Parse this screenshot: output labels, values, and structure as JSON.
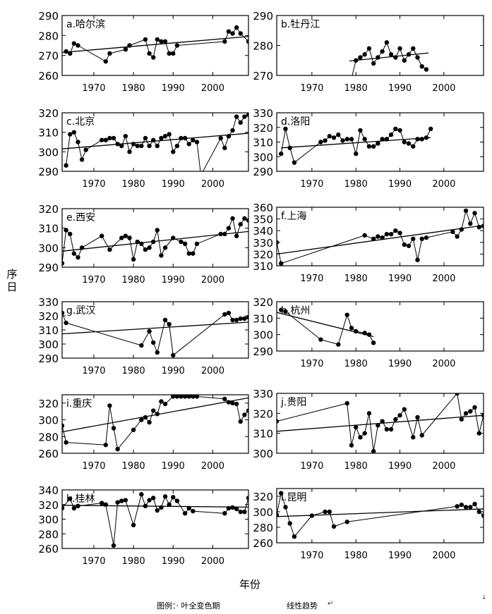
{
  "figure": {
    "y_axis_label": "序日",
    "x_axis_label": "年份",
    "legend_prefix": "图例：",
    "legend_point_label": "· 叶全变色期",
    "legend_line_label": "线性趋势",
    "legend_end_mark": "↵",
    "corner_mark": "↓"
  },
  "chart_data": [
    {
      "type": "scatter",
      "title": "a.哈尔滨",
      "xlim": [
        1962,
        2009
      ],
      "ylim": [
        260,
        290
      ],
      "yticks": [
        260,
        270,
        280,
        290
      ],
      "xticks": [
        1970,
        1980,
        1990,
        2000
      ],
      "series": [
        {
          "x": [
            1963,
            1964,
            1965,
            1966,
            1973,
            1974,
            1978,
            1979,
            1983,
            1984,
            1985,
            1986,
            1987,
            1988,
            1989,
            1990,
            1991,
            2003,
            2004,
            2005,
            2006,
            2007,
            2009
          ],
          "y": [
            272,
            271,
            276,
            275,
            267,
            271,
            273,
            275,
            278,
            271,
            269,
            278,
            277,
            277,
            271,
            271,
            275,
            277,
            282,
            281,
            284,
            281,
            277
          ]
        }
      ],
      "trend": [
        [
          1962,
          271.5
        ],
        [
          2009,
          279.5
        ]
      ]
    },
    {
      "type": "scatter",
      "title": "b.牡丹江",
      "xlim": [
        1962,
        2009
      ],
      "ylim": [
        270,
        290
      ],
      "yticks": [
        270,
        280,
        290
      ],
      "xticks": [
        1970,
        1980,
        1990,
        2000
      ],
      "series": [
        {
          "x": [
            1979,
            1980,
            1981,
            1982,
            1983,
            1984,
            1985,
            1986,
            1987,
            1988,
            1989,
            1990,
            1991,
            1992,
            1993,
            1994,
            1995,
            1996
          ],
          "y": [
            269,
            275,
            276,
            277,
            279,
            274,
            276,
            278,
            281,
            277,
            276,
            279,
            275,
            277,
            279,
            276,
            273,
            272
          ]
        }
      ],
      "trend": [
        [
          1978.5,
          274.8
        ],
        [
          1996.5,
          277.5
        ]
      ]
    },
    {
      "type": "scatter",
      "title": "c.北京",
      "xlim": [
        1962,
        2009
      ],
      "ylim": [
        290,
        320
      ],
      "yticks": [
        290,
        300,
        310,
        320
      ],
      "xticks": [
        1970,
        1980,
        1990,
        2000
      ],
      "series": [
        {
          "x": [
            1963,
            1964,
            1965,
            1966,
            1967,
            1968,
            1972,
            1973,
            1974,
            1975,
            1976,
            1977,
            1978,
            1979,
            1980,
            1981,
            1982,
            1983,
            1984,
            1985,
            1986,
            1987,
            1988,
            1989,
            1990,
            1991,
            1992,
            1993,
            1994,
            1995,
            1996,
            1997,
            2002,
            2003,
            2004,
            2005,
            2006,
            2007,
            2008,
            2009
          ],
          "y": [
            293,
            309,
            310,
            305,
            296,
            301,
            306,
            306,
            307,
            307,
            304,
            303,
            308,
            300,
            304,
            303,
            303,
            307,
            303,
            306,
            303,
            307,
            308,
            309,
            300,
            303,
            307,
            307,
            304,
            306,
            305,
            288,
            307,
            302,
            308,
            311,
            318,
            315,
            318,
            319
          ]
        }
      ],
      "trend": [
        [
          1962,
          301.5
        ],
        [
          2009,
          309.5
        ]
      ]
    },
    {
      "type": "scatter",
      "title": "d.洛阳",
      "xlim": [
        1962,
        2009
      ],
      "ylim": [
        290,
        330
      ],
      "yticks": [
        290,
        300,
        310,
        320,
        330
      ],
      "xticks": [
        1970,
        1980,
        1990,
        2000
      ],
      "series": [
        {
          "x": [
            1963,
            1964,
            1965,
            1966,
            1972,
            1973,
            1974,
            1975,
            1976,
            1977,
            1978,
            1979,
            1980,
            1981,
            1982,
            1983,
            1984,
            1985,
            1986,
            1987,
            1988,
            1989,
            1990,
            1991,
            1992,
            1993,
            1994,
            1995,
            1996,
            1997
          ],
          "y": [
            302,
            319,
            306,
            296,
            310,
            311,
            314,
            313,
            315,
            311,
            312,
            312,
            302,
            318,
            312,
            307,
            307,
            309,
            312,
            312,
            315,
            319,
            318,
            310,
            309,
            307,
            312,
            312,
            313,
            319
          ]
        }
      ],
      "trend": [
        [
          1963,
          306.0
        ],
        [
          1997,
          313.0
        ]
      ]
    },
    {
      "type": "scatter",
      "title": "e.西安",
      "xlim": [
        1962,
        2009
      ],
      "ylim": [
        290,
        320
      ],
      "yticks": [
        290,
        300,
        310,
        320
      ],
      "xticks": [
        1970,
        1980,
        1990,
        2000
      ],
      "series": [
        {
          "x": [
            1962,
            1963,
            1964,
            1965,
            1966,
            1967,
            1972,
            1974,
            1977,
            1978,
            1979,
            1980,
            1981,
            1982,
            1983,
            1984,
            1985,
            1986,
            1987,
            1988,
            1990,
            1992,
            1993,
            1994,
            1995,
            1996,
            2002,
            2003,
            2004,
            2005,
            2006,
            2007,
            2008,
            2009
          ],
          "y": [
            292,
            309,
            307,
            297,
            295,
            300,
            306,
            299,
            305,
            306,
            305,
            294,
            303,
            302,
            299,
            300,
            303,
            309,
            296,
            300,
            305,
            303,
            302,
            297,
            297,
            302,
            307,
            307,
            310,
            315,
            306,
            312,
            315,
            314
          ]
        }
      ],
      "trend": [
        [
          1962,
          298.2
        ],
        [
          2009,
          308.3
        ]
      ]
    },
    {
      "type": "scatter",
      "title": "f.上海",
      "xlim": [
        1962,
        2009
      ],
      "ylim": [
        310,
        360
      ],
      "yticks": [
        310,
        320,
        330,
        340,
        350,
        360
      ],
      "xticks": [
        1970,
        1980,
        1990,
        2000
      ],
      "series": [
        {
          "x": [
            1962,
            1963,
            1982,
            1984,
            1985,
            1986,
            1987,
            1988,
            1989,
            1990,
            1991,
            1992,
            1993,
            1994,
            1995,
            1996,
            2002,
            2003,
            2004,
            2005,
            2006,
            2007,
            2008,
            2009
          ],
          "y": [
            330,
            312,
            336,
            333,
            335,
            334,
            337,
            337,
            340,
            338,
            328,
            327,
            333,
            315,
            333,
            334,
            339,
            335,
            341,
            357,
            346,
            355,
            343,
            344
          ]
        }
      ],
      "trend": [
        [
          1962,
          320.0
        ],
        [
          2009,
          344.5
        ]
      ]
    },
    {
      "type": "scatter",
      "title": "g.武汉",
      "xlim": [
        1962,
        2009
      ],
      "ylim": [
        290,
        330
      ],
      "yticks": [
        290,
        300,
        310,
        320,
        330
      ],
      "xticks": [
        1970,
        1980,
        1990,
        2000
      ],
      "series": [
        {
          "x": [
            1962,
            1963,
            1982,
            1984,
            1985,
            1986,
            1988,
            1989,
            1990,
            2003,
            2004,
            2005,
            2006,
            2007,
            2008,
            2009
          ],
          "y": [
            322,
            315,
            299,
            309,
            301,
            294,
            317,
            314,
            292,
            321,
            322,
            317,
            317,
            318,
            318,
            319
          ]
        }
      ],
      "trend": [
        [
          1962,
          307.2
        ],
        [
          2009,
          315.5
        ]
      ]
    },
    {
      "type": "scatter",
      "title": "h.杭州",
      "xlim": [
        1962,
        2009
      ],
      "ylim": [
        290,
        320
      ],
      "yticks": [
        290,
        300,
        310,
        320
      ],
      "xticks": [
        1970,
        1980,
        1990,
        2000
      ],
      "series": [
        {
          "x": [
            1963,
            1964,
            1972,
            1976,
            1978,
            1979,
            1980,
            1982,
            1983,
            1984
          ],
          "y": [
            315,
            314,
            297,
            294,
            312,
            304,
            302,
            301,
            300,
            295
          ]
        }
      ],
      "trend": [
        [
          1962,
          313.5
        ],
        [
          1984,
          298.8
        ]
      ]
    },
    {
      "type": "scatter",
      "title": "i.重庆",
      "xlim": [
        1962,
        2009
      ],
      "ylim": [
        260,
        330
      ],
      "yticks": [
        260,
        280,
        300,
        320
      ],
      "xticks": [
        1970,
        1980,
        1990,
        2000
      ],
      "series": [
        {
          "x": [
            1962,
            1963,
            1973,
            1974,
            1975,
            1976,
            1980,
            1982,
            1983,
            1984,
            1985,
            1986,
            1987,
            1988,
            1990,
            1991,
            1992,
            1993,
            1994,
            1995,
            1996,
            2003,
            2004,
            2005,
            2006,
            2007,
            2008,
            2009
          ],
          "y": [
            293,
            273,
            270,
            317,
            290,
            265,
            288,
            300,
            303,
            297,
            311,
            307,
            322,
            319,
            328,
            328,
            328,
            328,
            328,
            328,
            328,
            325,
            321,
            320,
            319,
            298,
            306,
            311
          ]
        }
      ],
      "trend": [
        [
          1962,
          285.6
        ],
        [
          2009,
          326.3
        ]
      ]
    },
    {
      "type": "scatter",
      "title": "j.贵阳",
      "xlim": [
        1962,
        2009
      ],
      "ylim": [
        300,
        330
      ],
      "yticks": [
        300,
        310,
        320,
        330
      ],
      "xticks": [
        1970,
        1980,
        1990,
        2000
      ],
      "series": [
        {
          "x": [
            1962,
            1978,
            1979,
            1980,
            1981,
            1982,
            1983,
            1984,
            1985,
            1986,
            1987,
            1988,
            1989,
            1990,
            1991,
            1993,
            1994,
            1995,
            2003,
            2004,
            2005,
            2006,
            2007,
            2008,
            2009
          ],
          "y": [
            316,
            325,
            304,
            313,
            308,
            310,
            320,
            301,
            314,
            316,
            312,
            312,
            317,
            319,
            322,
            308,
            318,
            309,
            330,
            317,
            320,
            321,
            323,
            310,
            319
          ]
        }
      ],
      "trend": [
        [
          1962,
          311.0
        ],
        [
          2009,
          319.0
        ]
      ]
    },
    {
      "type": "scatter",
      "title": "k.桂林",
      "xlim": [
        1962,
        2009
      ],
      "ylim": [
        260,
        340
      ],
      "yticks": [
        260,
        280,
        300,
        320,
        340
      ],
      "xticks": [
        1970,
        1980,
        1990,
        2000
      ],
      "series": [
        {
          "x": [
            1962,
            1964,
            1965,
            1966,
            1972,
            1973,
            1975,
            1976,
            1977,
            1978,
            1980,
            1982,
            1983,
            1984,
            1985,
            1986,
            1987,
            1988,
            1989,
            1990,
            1991,
            1993,
            1994,
            1995,
            2003,
            2004,
            2005,
            2006,
            2007,
            2008,
            2009
          ],
          "y": [
            315,
            328,
            315,
            318,
            322,
            320,
            264,
            323,
            325,
            326,
            292,
            334,
            318,
            326,
            329,
            312,
            316,
            331,
            320,
            330,
            325,
            308,
            315,
            311,
            308,
            315,
            316,
            314,
            310,
            310,
            329
          ]
        }
      ],
      "trend": [
        [
          1962,
          319.0
        ],
        [
          2009,
          316.5
        ]
      ]
    },
    {
      "type": "scatter",
      "title": "l.昆明",
      "xlim": [
        1962,
        2009
      ],
      "ylim": [
        260,
        330
      ],
      "yticks": [
        260,
        280,
        300,
        320
      ],
      "xticks": [
        1970,
        1980,
        1990,
        2000
      ],
      "series": [
        {
          "x": [
            1962,
            1963,
            1964,
            1965,
            1966,
            1970,
            1973,
            1974,
            1975,
            1978,
            2003,
            2004,
            2005,
            2006,
            2007,
            2008,
            2009
          ],
          "y": [
            296,
            324,
            306,
            285,
            268,
            295,
            300,
            300,
            281,
            287,
            307,
            309,
            306,
            306,
            310,
            300,
            295
          ]
        }
      ],
      "trend": [
        [
          1962,
          293.8
        ],
        [
          2009,
          303.7
        ]
      ]
    }
  ]
}
